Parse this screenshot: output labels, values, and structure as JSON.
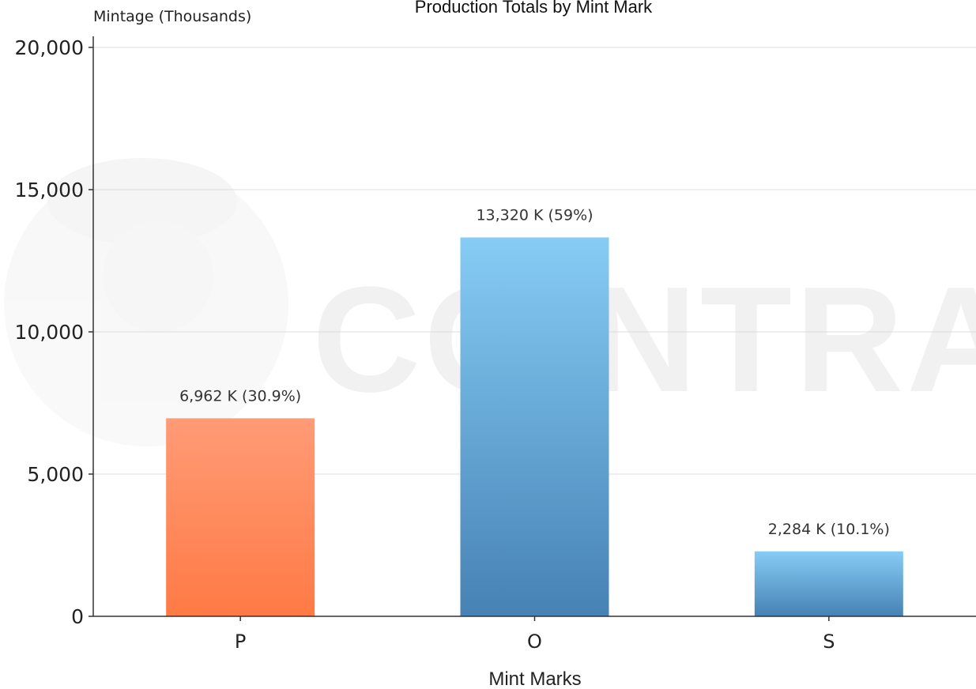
{
  "chart_data": {
    "type": "bar",
    "title": "Production Totals by Mint Mark",
    "ylabel": "Mintage (Thousands)",
    "xlabel": "Mint Marks",
    "categories": [
      "P",
      "O",
      "S"
    ],
    "values": [
      6962,
      13320,
      2284
    ],
    "data_labels": [
      "6,962 K (30.9%)",
      "13,320 K (59%)",
      "2,284 K (10.1%)"
    ],
    "colors": [
      [
        "#ff9b76",
        "#ff7a45"
      ],
      [
        "#86ccf5",
        "#4682b4"
      ],
      [
        "#86ccf5",
        "#4682b4"
      ]
    ],
    "ylim": [
      0,
      20000
    ],
    "yticks": [
      0,
      5000,
      10000,
      15000,
      20000
    ],
    "ytick_labels": [
      "0",
      "5,000",
      "10,000",
      "15,000",
      "20,000"
    ],
    "grid": true,
    "legend": "none",
    "watermark_text": "COINTRACKER"
  }
}
